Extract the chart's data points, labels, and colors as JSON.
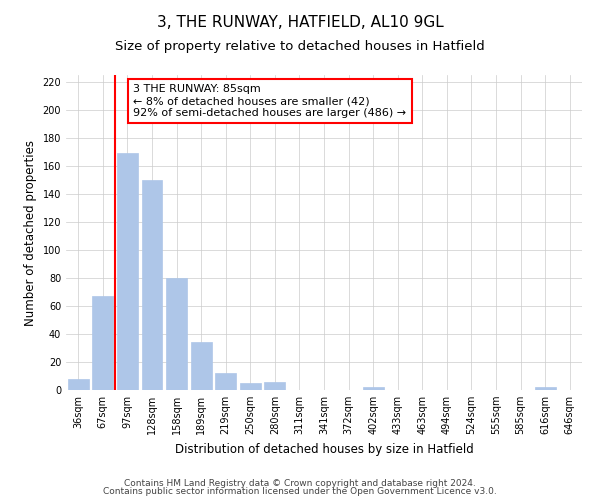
{
  "title": "3, THE RUNWAY, HATFIELD, AL10 9GL",
  "subtitle": "Size of property relative to detached houses in Hatfield",
  "xlabel": "Distribution of detached houses by size in Hatfield",
  "ylabel": "Number of detached properties",
  "bar_labels": [
    "36sqm",
    "67sqm",
    "97sqm",
    "128sqm",
    "158sqm",
    "189sqm",
    "219sqm",
    "250sqm",
    "280sqm",
    "311sqm",
    "341sqm",
    "372sqm",
    "402sqm",
    "433sqm",
    "463sqm",
    "494sqm",
    "524sqm",
    "555sqm",
    "585sqm",
    "616sqm",
    "646sqm"
  ],
  "bar_values": [
    8,
    67,
    169,
    150,
    80,
    34,
    12,
    5,
    6,
    0,
    0,
    0,
    2,
    0,
    0,
    0,
    0,
    0,
    0,
    2,
    0
  ],
  "bar_color": "#aec6e8",
  "bar_edge_color": "#aec6e8",
  "grid_color": "#cccccc",
  "vline_color": "red",
  "annotation_text": "3 THE RUNWAY: 85sqm\n← 8% of detached houses are smaller (42)\n92% of semi-detached houses are larger (486) →",
  "annotation_box_color": "white",
  "annotation_box_edgecolor": "red",
  "ylim": [
    0,
    225
  ],
  "yticks": [
    0,
    20,
    40,
    60,
    80,
    100,
    120,
    140,
    160,
    180,
    200,
    220
  ],
  "footer1": "Contains HM Land Registry data © Crown copyright and database right 2024.",
  "footer2": "Contains public sector information licensed under the Open Government Licence v3.0.",
  "title_fontsize": 11,
  "subtitle_fontsize": 9.5,
  "axis_label_fontsize": 8.5,
  "tick_fontsize": 7,
  "annotation_fontsize": 8,
  "footer_fontsize": 6.5
}
